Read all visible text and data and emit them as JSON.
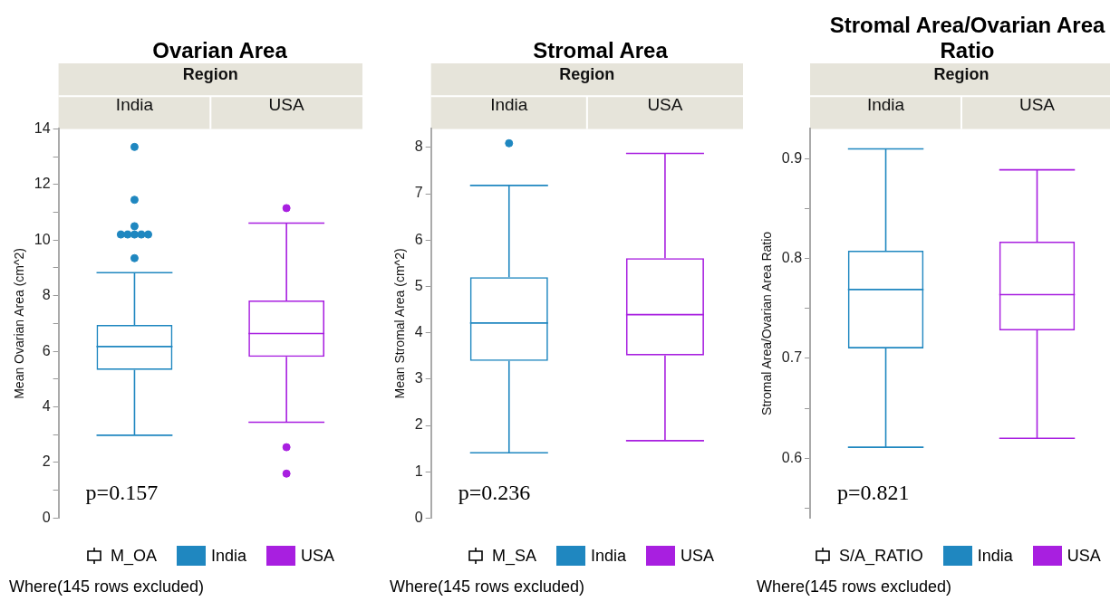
{
  "chart_data": [
    {
      "type": "box",
      "title": "Ovarian Area",
      "xlabel": "Region",
      "ylabel": "Mean Ovarian Area (cm^2)",
      "legend_title": "M_OA",
      "categories": [
        "India",
        "USA"
      ],
      "ylim": [
        0,
        14
      ],
      "yticks": [
        0,
        {
          "value": 1,
          "label": null
        },
        2,
        {
          "value": 3,
          "label": null
        },
        4,
        {
          "value": 5,
          "label": null
        },
        6,
        {
          "value": 7,
          "label": null
        },
        8,
        {
          "value": 9,
          "label": null
        },
        10,
        {
          "value": 11,
          "label": null
        },
        12,
        {
          "value": 13,
          "label": null
        },
        14
      ],
      "legend": "bottom",
      "marker": "circle",
      "annotations": [
        "p=0.157",
        "Where(145 rows excluded)"
      ],
      "series": [
        {
          "name": "India",
          "color": "#1f87c0",
          "boxes": [
            {
              "low": 2.98,
              "q1": 5.33,
              "median": 6.17,
              "q3": 6.95,
              "high": 8.83,
              "outliers": [
                13.35,
                11.45,
                10.5,
                10.2,
                10.2,
                10.2,
                10.2,
                10.2,
                9.35
              ]
            },
            null
          ]
        },
        {
          "name": "USA",
          "color": "#a81fe0",
          "boxes": [
            null,
            {
              "low": 3.45,
              "q1": 5.8,
              "median": 6.64,
              "q3": 7.83,
              "high": 10.61,
              "outliers": [
                11.15,
                2.55,
                1.6
              ]
            }
          ]
        }
      ]
    },
    {
      "type": "box",
      "title": "Stromal Area",
      "xlabel": "Region",
      "ylabel": "Mean Stromal Area (cm^2)",
      "legend_title": "M_SA",
      "categories": [
        "India",
        "USA"
      ],
      "ylim": [
        0,
        8.4
      ],
      "yticks": [
        0,
        1,
        2,
        3,
        4,
        5,
        6,
        7,
        8
      ],
      "legend": "bottom",
      "marker": "circle",
      "annotations": [
        "p=0.236",
        "Where(145 rows excluded)"
      ],
      "series": [
        {
          "name": "India",
          "color": "#1f87c0",
          "boxes": [
            {
              "low": 1.41,
              "q1": 3.39,
              "median": 4.21,
              "q3": 5.2,
              "high": 7.18,
              "outliers": [
                8.09
              ]
            },
            null
          ]
        },
        {
          "name": "USA",
          "color": "#a81fe0",
          "boxes": [
            null,
            {
              "low": 1.67,
              "q1": 3.51,
              "median": 4.39,
              "q3": 5.61,
              "high": 7.87
            }
          ]
        }
      ]
    },
    {
      "type": "box",
      "title": "Stromal Area/Ovarian Area Ratio",
      "xlabel": "Region",
      "ylabel": "Stromal Area/Ovarian Area Ratio",
      "legend_title": "S/A_RATIO",
      "categories": [
        "India",
        "USA"
      ],
      "ylim": [
        0.54,
        0.93
      ],
      "yticks": [
        {
          "value": 0.55,
          "label": null
        },
        {
          "value": 0.6,
          "label": "0.6"
        },
        {
          "value": 0.65,
          "label": null
        },
        {
          "value": 0.7,
          "label": "0.7"
        },
        {
          "value": 0.75,
          "label": null
        },
        {
          "value": 0.8,
          "label": "0.8"
        },
        {
          "value": 0.85,
          "label": null
        },
        {
          "value": 0.9,
          "label": "0.9"
        }
      ],
      "legend": "bottom",
      "annotations": [
        "p=0.821",
        "Where(145 rows excluded)"
      ],
      "series": [
        {
          "name": "India",
          "color": "#1f87c0",
          "boxes": [
            {
              "low": 0.611,
              "q1": 0.71,
              "median": 0.769,
              "q3": 0.808,
              "high": 0.91
            },
            null
          ]
        },
        {
          "name": "USA",
          "color": "#a81fe0",
          "boxes": [
            null,
            {
              "low": 0.62,
              "q1": 0.728,
              "median": 0.764,
              "q3": 0.817,
              "high": 0.889
            }
          ]
        }
      ]
    }
  ]
}
